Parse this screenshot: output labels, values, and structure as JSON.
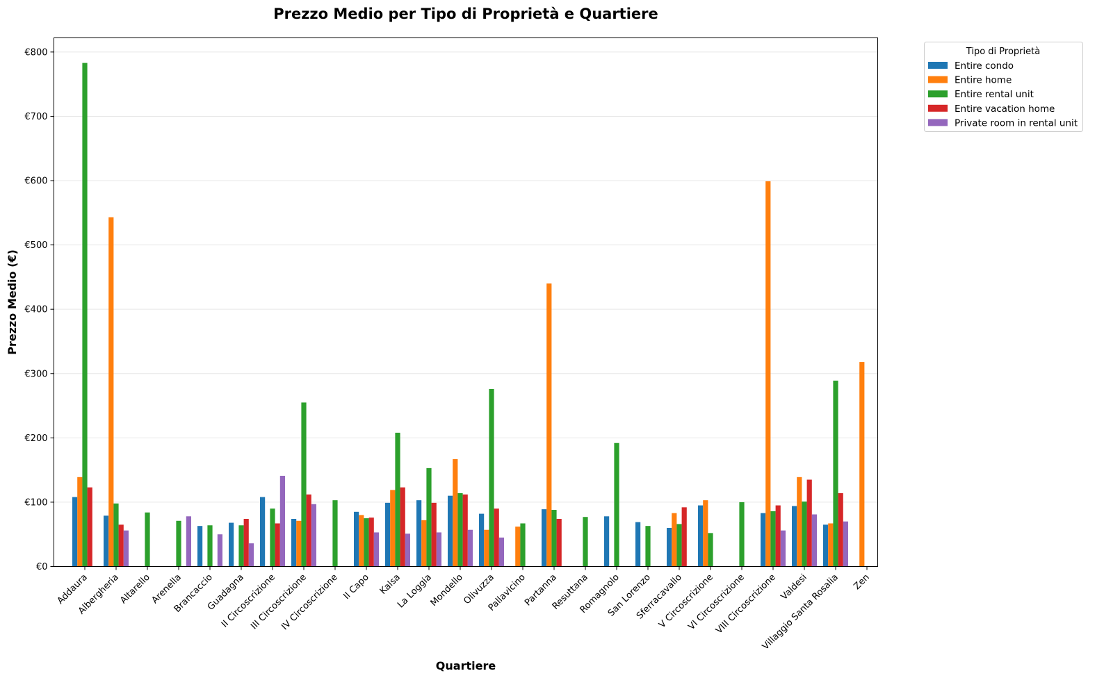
{
  "chart_data": {
    "type": "bar",
    "title": "Prezzo Medio per Tipo di Proprietà e Quartiere",
    "xlabel": "Quartiere",
    "ylabel": "Prezzo Medio (€)",
    "ylim": [
      0,
      822
    ],
    "yticks": [
      0,
      100,
      200,
      300,
      400,
      500,
      600,
      700,
      800
    ],
    "ytick_labels": [
      "€0",
      "€100",
      "€200",
      "€300",
      "€400",
      "€500",
      "€600",
      "€700",
      "€800"
    ],
    "grid": "horizontal",
    "legend": {
      "title": "Tipo di Proprietà",
      "placement": "outside-top-right"
    },
    "categories": [
      "Addaura",
      "Albergheria",
      "Altarello",
      "Arenella",
      "Brancaccio",
      "Guadagna",
      "II Circoscrizione",
      "III Circoscrizione",
      "IV Circoscrizione",
      "Il Capo",
      "Kalsa",
      "La Loggia",
      "Mondello",
      "Olivuzza",
      "Pallavicino",
      "Partanna",
      "Resuttana",
      "Romagnolo",
      "San Lorenzo",
      "Sferracavallo",
      "V Circoscrizione",
      "VI Circoscrizione",
      "VIII Circoscrizione",
      "Valdesi",
      "Villaggio Santa Rosalia",
      "Zen"
    ],
    "series": [
      {
        "name": "Entire condo",
        "color": "#1f77b4",
        "values": [
          108,
          79,
          null,
          null,
          63,
          68,
          108,
          74,
          null,
          85,
          99,
          103,
          110,
          82,
          null,
          89,
          null,
          78,
          69,
          60,
          95,
          null,
          83,
          94,
          65,
          null
        ]
      },
      {
        "name": "Entire home",
        "color": "#ff7f0e",
        "values": [
          139,
          543,
          null,
          null,
          null,
          null,
          null,
          71,
          null,
          80,
          119,
          72,
          167,
          57,
          62,
          440,
          null,
          null,
          null,
          83,
          103,
          null,
          599,
          139,
          67,
          318
        ]
      },
      {
        "name": "Entire rental unit",
        "color": "#2ca02c",
        "values": [
          783,
          98,
          84,
          71,
          64,
          64,
          90,
          255,
          103,
          75,
          208,
          153,
          114,
          276,
          67,
          88,
          77,
          192,
          63,
          66,
          52,
          100,
          86,
          101,
          289,
          null
        ]
      },
      {
        "name": "Entire vacation home",
        "color": "#d62728",
        "values": [
          123,
          65,
          null,
          null,
          null,
          74,
          67,
          112,
          null,
          76,
          123,
          99,
          112,
          90,
          null,
          74,
          null,
          null,
          null,
          92,
          null,
          null,
          95,
          135,
          114,
          null
        ]
      },
      {
        "name": "Private room in rental unit",
        "color": "#9467bd",
        "values": [
          null,
          56,
          null,
          78,
          50,
          36,
          141,
          97,
          null,
          53,
          51,
          53,
          57,
          45,
          null,
          null,
          null,
          null,
          null,
          null,
          null,
          null,
          56,
          81,
          70,
          null
        ]
      }
    ]
  }
}
